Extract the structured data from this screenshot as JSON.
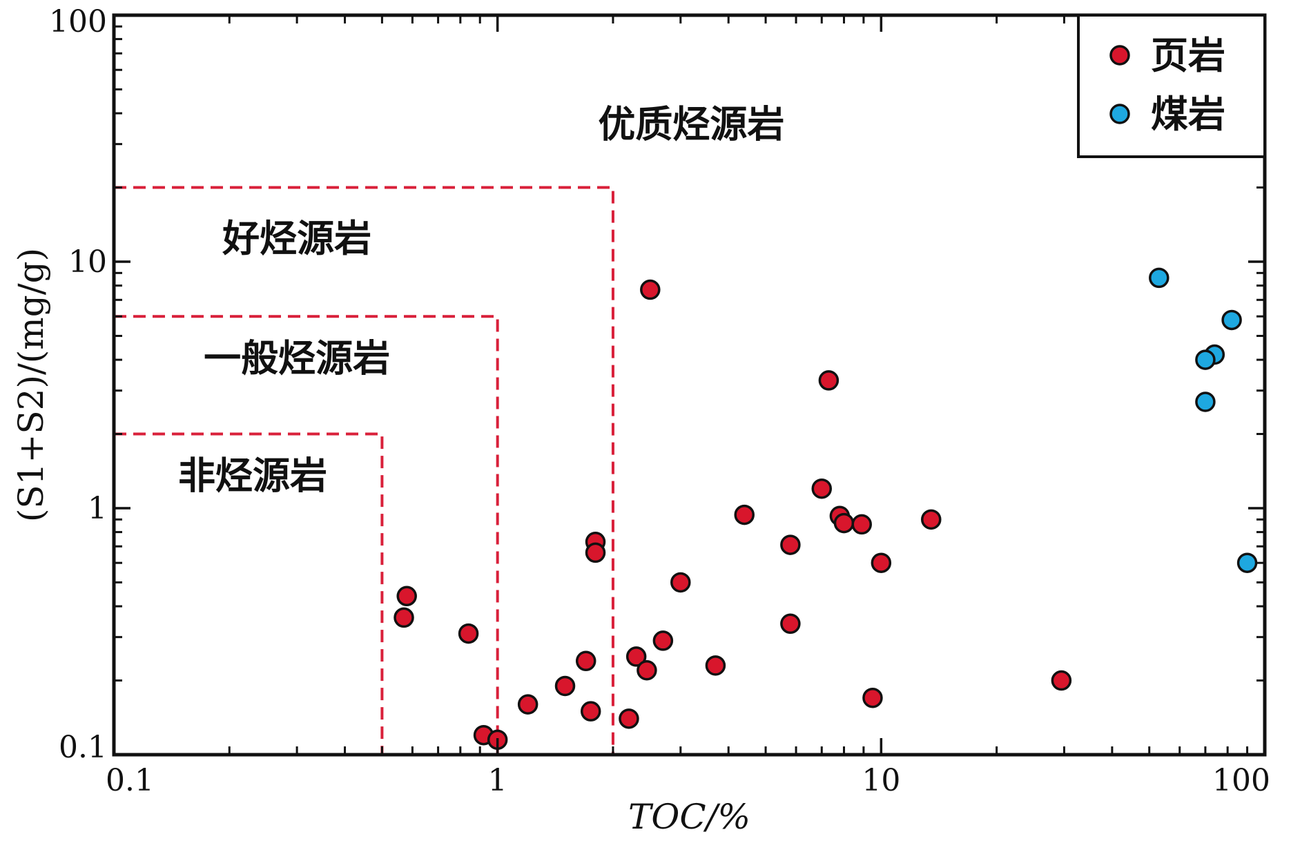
{
  "chart_data": {
    "type": "scatter",
    "xscale": "log",
    "yscale": "log",
    "xlim": [
      0.1,
      100
    ],
    "ylim": [
      0.1,
      100
    ],
    "x_ticks": [
      "0.1",
      "1",
      "10",
      "100"
    ],
    "y_ticks": [
      "0.1",
      "1",
      "10",
      "100"
    ],
    "xlabel": "TOC/%",
    "ylabel": "(S1+S2)/(mg/g)",
    "legend_position": "top-right",
    "boundary_color": "#d9203a",
    "region_boundaries": [
      {
        "label": "非烃源岩",
        "toc_max": 0.5,
        "s_max": 2
      },
      {
        "label": "一般烃源岩",
        "toc_max": 1,
        "s_max": 6
      },
      {
        "label": "好烃源岩",
        "toc_max": 2,
        "s_max": 20
      }
    ],
    "regions": [
      {
        "label": "优质烃源岩",
        "x": 3.2,
        "y": 32
      },
      {
        "label": "好烃源岩",
        "x": 0.3,
        "y": 11
      },
      {
        "label": "一般烃源岩",
        "x": 0.3,
        "y": 3.6
      },
      {
        "label": "非烃源岩",
        "x": 0.23,
        "y": 1.2
      }
    ],
    "series": [
      {
        "name": "页岩",
        "color": "#d8162c",
        "points": [
          [
            2.5,
            7.7
          ],
          [
            7.3,
            3.3
          ],
          [
            7.0,
            1.2
          ],
          [
            4.4,
            0.94
          ],
          [
            7.8,
            0.93
          ],
          [
            8.0,
            0.87
          ],
          [
            8.9,
            0.86
          ],
          [
            13.5,
            0.9
          ],
          [
            5.8,
            0.71
          ],
          [
            10.0,
            0.6
          ],
          [
            1.8,
            0.73
          ],
          [
            1.8,
            0.66
          ],
          [
            3.0,
            0.5
          ],
          [
            0.58,
            0.44
          ],
          [
            0.57,
            0.36
          ],
          [
            0.84,
            0.31
          ],
          [
            5.8,
            0.34
          ],
          [
            2.7,
            0.29
          ],
          [
            1.7,
            0.24
          ],
          [
            2.3,
            0.25
          ],
          [
            2.45,
            0.22
          ],
          [
            3.7,
            0.23
          ],
          [
            29.5,
            0.2
          ],
          [
            1.5,
            0.19
          ],
          [
            1.2,
            0.16
          ],
          [
            1.75,
            0.15
          ],
          [
            2.2,
            0.14
          ],
          [
            9.5,
            0.17
          ],
          [
            0.92,
            0.12
          ],
          [
            1.0,
            0.115
          ]
        ]
      },
      {
        "name": "煤岩",
        "color": "#1ea8e0",
        "points": [
          [
            53,
            8.6
          ],
          [
            82,
            5.8
          ],
          [
            74,
            4.2
          ],
          [
            70,
            4.0
          ],
          [
            70,
            2.7
          ],
          [
            90,
            0.6
          ]
        ]
      }
    ]
  }
}
